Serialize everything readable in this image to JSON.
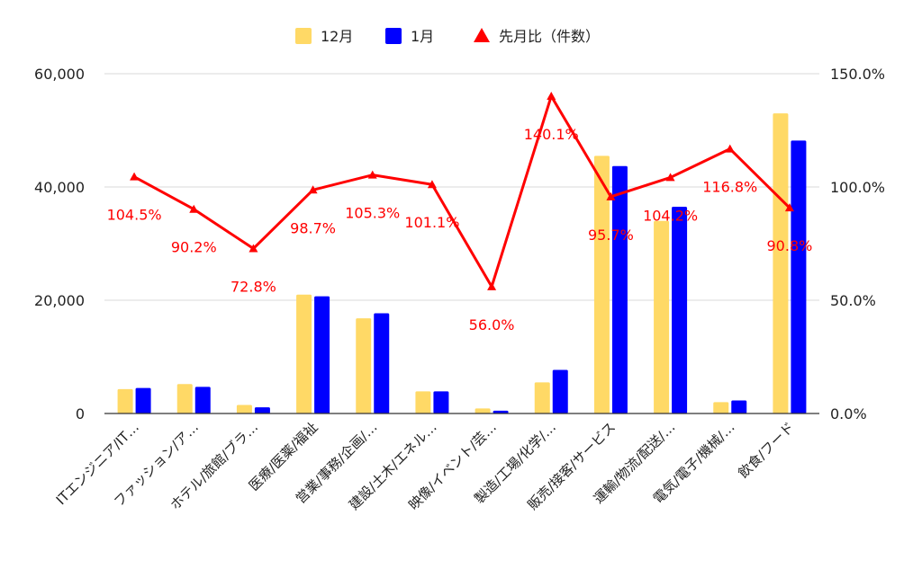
{
  "chart_data": {
    "type": "bar",
    "categories": [
      "ITエンジニア/IT…",
      "ファッション/ア…",
      "ホテル/旅館/ブラ…",
      "医療/医薬/福祉",
      "営業/事務/企画/…",
      "建設/土木/エネル…",
      "映像/イベント/芸…",
      "製造/工場/化学/…",
      "販売/接客/サービス",
      "運輸/物流/配送/…",
      "電気/電子/機械/…",
      "飲食/フード"
    ],
    "series": [
      {
        "name": "12月",
        "type": "bar",
        "color": "#ffd966",
        "values": [
          4300,
          5200,
          1500,
          21000,
          16800,
          3900,
          900,
          5500,
          45500,
          34000,
          2000,
          53000
        ]
      },
      {
        "name": "1月",
        "type": "bar",
        "color": "#0000ff",
        "values": [
          4500,
          4700,
          1100,
          20700,
          17700,
          3900,
          500,
          7700,
          43700,
          36500,
          2300,
          48200
        ]
      },
      {
        "name": "先月比（件数）",
        "type": "line",
        "axis": "right",
        "color": "#ff0000",
        "values": [
          104.5,
          90.2,
          72.8,
          98.7,
          105.3,
          101.1,
          56.0,
          140.1,
          95.7,
          104.2,
          116.8,
          90.8
        ],
        "labels": [
          "104.5%",
          "90.2%",
          "72.8%",
          "98.7%",
          "105.3%",
          "101.1%",
          "56.0%",
          "140.1%",
          "95.7%",
          "104.2%",
          "116.8%",
          "90.8%"
        ]
      }
    ],
    "y_left": {
      "min": 0,
      "max": 60000,
      "ticks": [
        0,
        20000,
        40000,
        60000
      ],
      "tick_labels": [
        "0",
        "20,000",
        "40,000",
        "60,000"
      ]
    },
    "y_right": {
      "min": 0,
      "max": 150,
      "ticks": [
        0,
        50,
        100,
        150
      ],
      "tick_labels": [
        "0.0%",
        "50.0%",
        "100.0%",
        "150.0%"
      ]
    },
    "grid": true,
    "legend_position": "top"
  }
}
